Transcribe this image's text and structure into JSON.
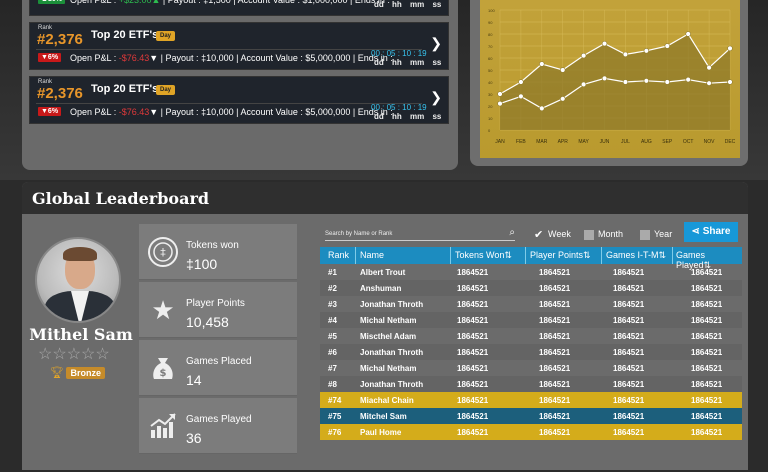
{
  "rank_cards": [
    {
      "rank_label": "Rank",
      "rank": "#2,376",
      "title": "Top 20 ETF's",
      "period": "Day",
      "pct": "▼6%",
      "pnl_label": "Open P&L :",
      "pnl_value": "-$76.43",
      "pnl_arrow": "▼",
      "payout_label": "Payout :",
      "payout_value": "‡10,000",
      "account_label": "Account Value :",
      "account_value": "$5,000,000",
      "ends_label": "Ends in :",
      "timer": "00 : 05 : 10 : 19",
      "timer_units": "dd hh mm ss"
    },
    {
      "rank_label": "Rank",
      "rank": "#2,376",
      "title": "Top 20 ETF's",
      "period": "Day",
      "pct": "▼6%",
      "pnl_label": "Open P&L :",
      "pnl_value": "-$76.43",
      "pnl_arrow": "▼",
      "payout_label": "Payout :",
      "payout_value": "‡10,000",
      "account_label": "Account Value :",
      "account_value": "$5,000,000",
      "ends_label": "Ends in :",
      "timer": "00 : 05 : 10 : 19",
      "timer_units": "dd hh mm ss"
    }
  ],
  "chart_data": {
    "type": "line",
    "categories": [
      "JAN",
      "FEB",
      "MAR",
      "APR",
      "MAY",
      "JUN",
      "JUL",
      "AUG",
      "SEP",
      "OCT",
      "NOV",
      "DEC"
    ],
    "series": [
      {
        "values": [
          30,
          40,
          55,
          50,
          62,
          72,
          63,
          66,
          70,
          80,
          52,
          68
        ]
      },
      {
        "values": [
          22,
          28,
          18,
          26,
          38,
          43,
          40,
          41,
          40,
          42,
          39,
          40
        ]
      }
    ],
    "ylim": [
      0,
      100
    ],
    "grid": true,
    "colors": {
      "area": "#8f7a2a",
      "line": "#ffffff",
      "background": "#bf9f36"
    }
  },
  "leaderboard": {
    "title": "Global Leaderboard",
    "player": {
      "name": "Mithel Sam",
      "stars": "☆☆☆☆☆",
      "tier": "Bronze"
    },
    "stats": [
      {
        "icon": "coin-icon",
        "label": "Tokens won",
        "value": "‡100"
      },
      {
        "icon": "star-icon",
        "label": "Player Points",
        "value": "10,458"
      },
      {
        "icon": "money-bag-icon",
        "label": "Games Placed",
        "value": "14"
      },
      {
        "icon": "trend-up-icon",
        "label": "Games Played",
        "value": "36"
      }
    ],
    "search_placeholder": "Search by Name or Rank",
    "filters": [
      {
        "label": "Week",
        "checked": true
      },
      {
        "label": "Month",
        "checked": false
      },
      {
        "label": "Year",
        "checked": false
      }
    ],
    "share_label": "Share",
    "columns": [
      "Rank",
      "Name",
      "Tokens Won⇅",
      "Player Points⇅",
      "Games I-T-M⇅",
      "Games Played⇅"
    ],
    "rows": [
      {
        "rank": "#1",
        "name": "Albert Trout",
        "tokens": "1864521",
        "points": "1864521",
        "itm": "1864521",
        "played": "1864521",
        "style": ""
      },
      {
        "rank": "#2",
        "name": "Anshuman",
        "tokens": "1864521",
        "points": "1864521",
        "itm": "1864521",
        "played": "1864521",
        "style": "alt"
      },
      {
        "rank": "#3",
        "name": "Jonathan Throth",
        "tokens": "1864521",
        "points": "1864521",
        "itm": "1864521",
        "played": "1864521",
        "style": ""
      },
      {
        "rank": "#4",
        "name": "Michal Netham",
        "tokens": "1864521",
        "points": "1864521",
        "itm": "1864521",
        "played": "1864521",
        "style": "alt"
      },
      {
        "rank": "#5",
        "name": "Miscthel Adam",
        "tokens": "1864521",
        "points": "1864521",
        "itm": "1864521",
        "played": "1864521",
        "style": ""
      },
      {
        "rank": "#6",
        "name": "Jonathan Throth",
        "tokens": "1864521",
        "points": "1864521",
        "itm": "1864521",
        "played": "1864521",
        "style": "alt"
      },
      {
        "rank": "#7",
        "name": "Michal Netham",
        "tokens": "1864521",
        "points": "1864521",
        "itm": "1864521",
        "played": "1864521",
        "style": ""
      },
      {
        "rank": "#8",
        "name": "Jonathan Throth",
        "tokens": "1864521",
        "points": "1864521",
        "itm": "1864521",
        "played": "1864521",
        "style": "alt"
      },
      {
        "rank": "#74",
        "name": "Miachal Chain",
        "tokens": "1864521",
        "points": "1864521",
        "itm": "1864521",
        "played": "1864521",
        "style": "gold"
      },
      {
        "rank": "#75",
        "name": "Mitchel Sam",
        "tokens": "1864521",
        "points": "1864521",
        "itm": "1864521",
        "played": "1864521",
        "style": "teal"
      },
      {
        "rank": "#76",
        "name": "Paul Home",
        "tokens": "1864521",
        "points": "1864521",
        "itm": "1864521",
        "played": "1864521",
        "style": "gold"
      }
    ]
  }
}
